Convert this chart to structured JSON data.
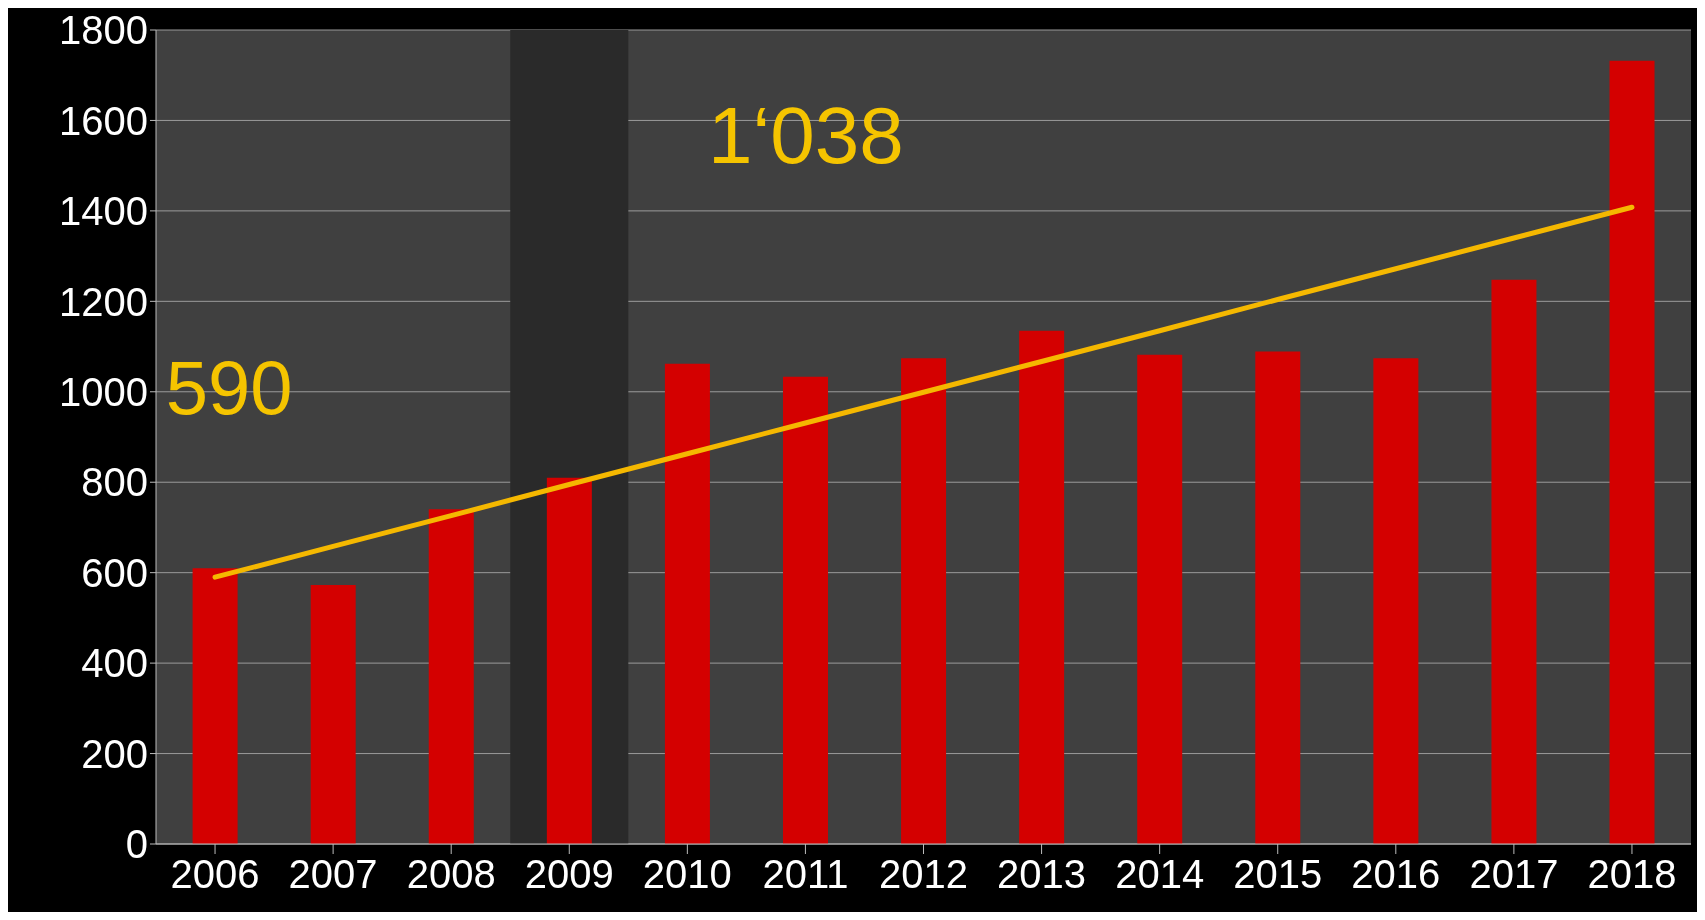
{
  "chart_data": {
    "type": "bar",
    "categories": [
      "2006",
      "2007",
      "2008",
      "2009",
      "2010",
      "2011",
      "2012",
      "2013",
      "2014",
      "2015",
      "2016",
      "2017",
      "2018"
    ],
    "series": [
      {
        "color": "#d40000",
        "values": [
          610,
          573,
          740,
          810,
          1062,
          1033,
          1074,
          1135,
          1082,
          1089,
          1074,
          1248,
          1732
        ]
      },
      {
        "type": "line",
        "color": "#f5b800",
        "values": [
          590,
          658,
          726,
          795,
          863,
          931,
          999,
          1067,
          1135,
          1204,
          1272,
          1340,
          1408
        ]
      }
    ],
    "ylim": [
      0,
      1800
    ],
    "yticks": [
      0,
      200,
      400,
      600,
      800,
      1000,
      1200,
      1400,
      1600,
      1800
    ],
    "grid": "y",
    "bands": [
      {
        "axis": "x",
        "from": "2009",
        "to": "2009",
        "color": "#2a2a2a"
      }
    ],
    "annotations": [
      {
        "text": "590",
        "x": "2006",
        "y": 590
      },
      "1‘038"
    ]
  }
}
